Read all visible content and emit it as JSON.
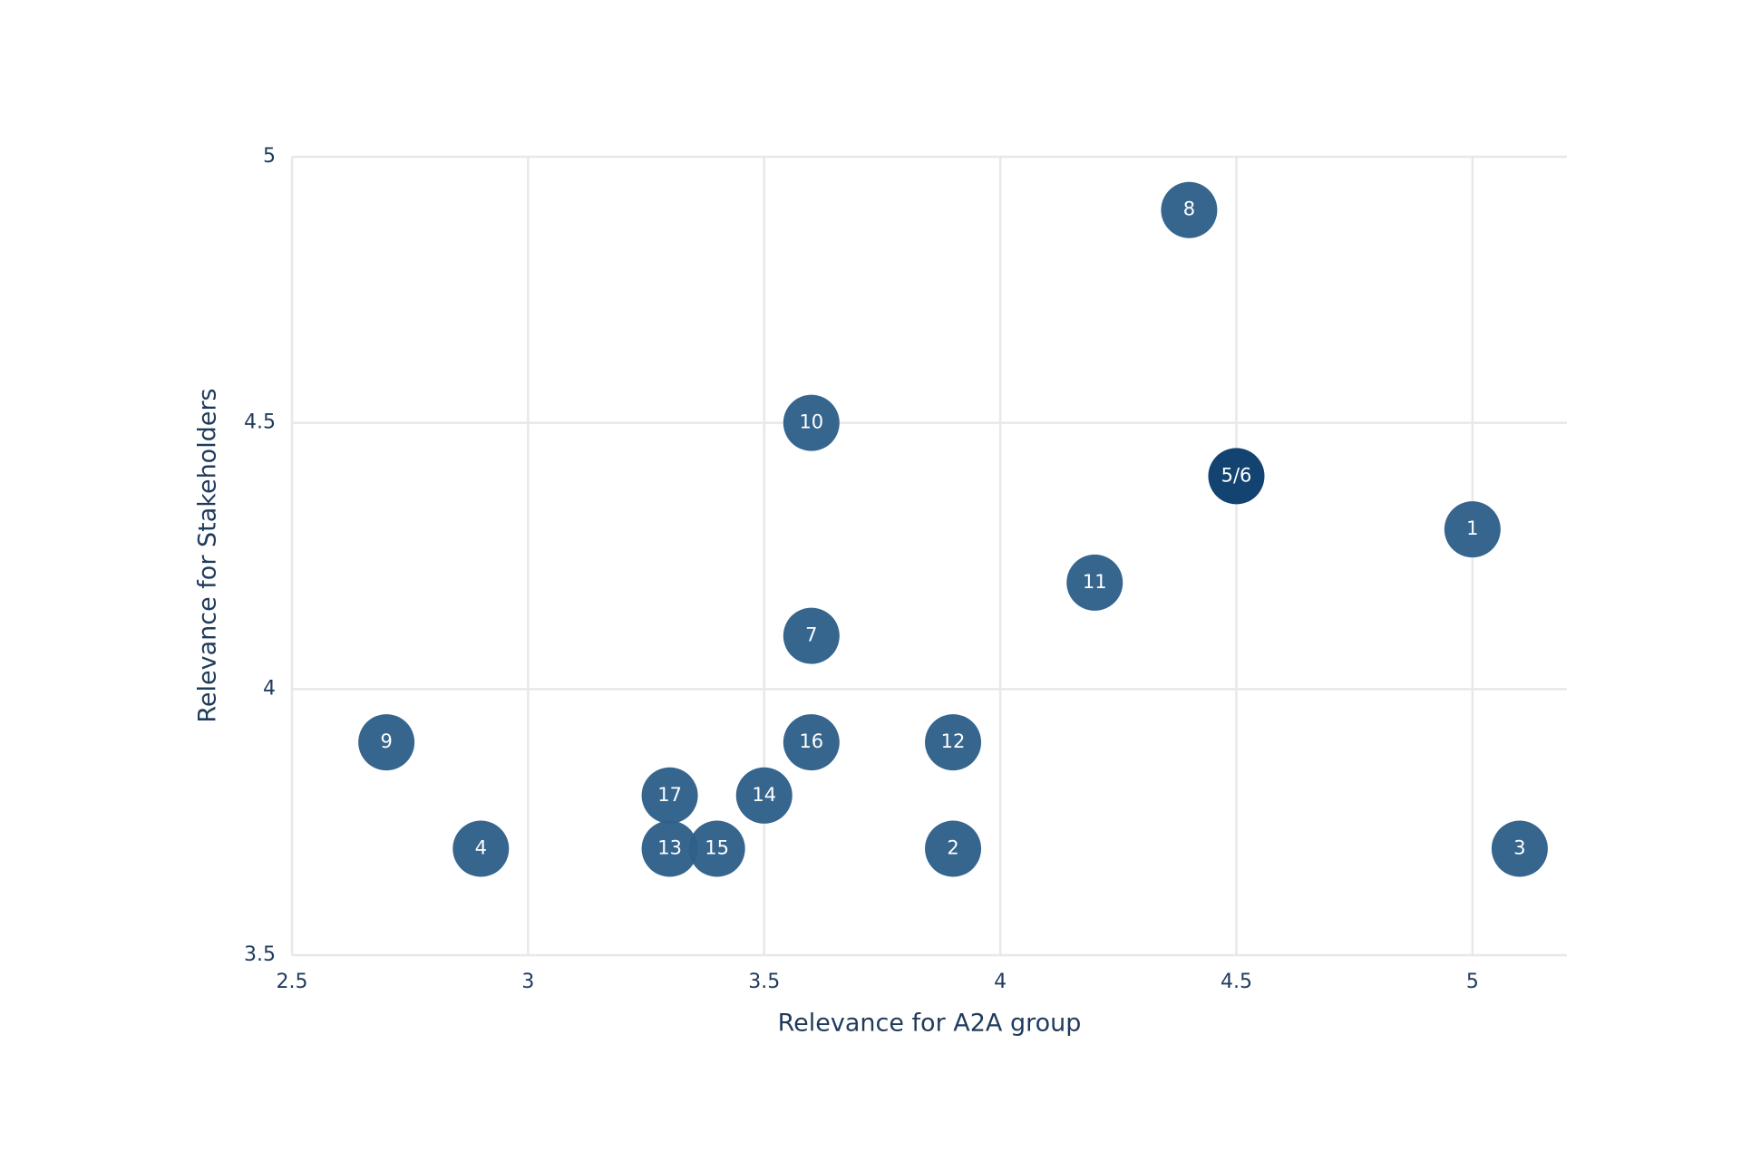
{
  "chart_data": {
    "type": "scatter",
    "x_label": "Relevance for A2A group",
    "y_label": "Relevance for Stakeholders",
    "x": [
      5.0,
      3.9,
      5.1,
      2.9,
      4.5,
      3.6,
      4.4,
      2.7,
      3.6,
      4.2,
      3.9,
      3.3,
      3.5,
      3.4,
      3.6,
      3.3
    ],
    "y": [
      4.3,
      3.7,
      3.7,
      3.7,
      4.4,
      4.1,
      4.9,
      3.9,
      4.5,
      4.2,
      3.9,
      3.7,
      3.8,
      3.7,
      3.9,
      3.8
    ],
    "labels": [
      "1",
      "2",
      "3",
      "4",
      "5/6",
      "7",
      "8",
      "9",
      "10",
      "11",
      "12",
      "13",
      "14",
      "15",
      "16",
      "17"
    ],
    "colors": [
      "#30608a",
      "#30608a",
      "#30608a",
      "#30608a",
      "#0b3d6b",
      "#30608a",
      "#30608a",
      "#30608a",
      "#30608a",
      "#30608a",
      "#30608a",
      "#30608a",
      "#30608a",
      "#30608a",
      "#30608a",
      "#30608a"
    ],
    "xlim": [
      2.5,
      5.2
    ],
    "ylim": [
      3.5,
      5
    ],
    "xticks": [
      2.5,
      3,
      3.5,
      4,
      4.5,
      5
    ],
    "yticks": [
      3.5,
      4,
      4.5,
      5
    ],
    "grid": true
  }
}
